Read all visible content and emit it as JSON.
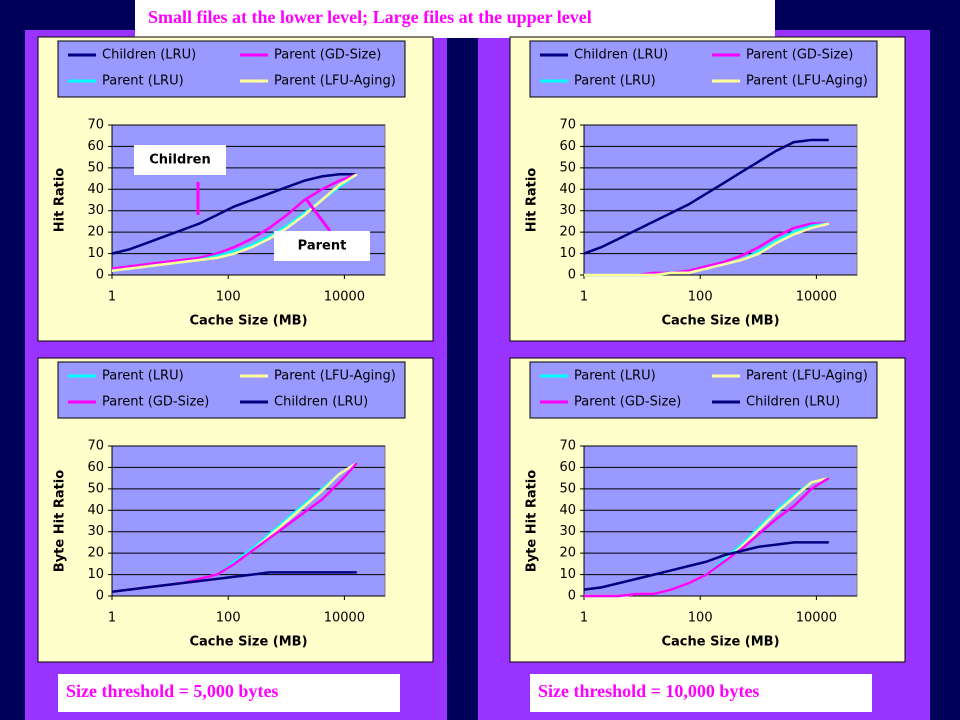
{
  "slide": {
    "title": "Small files at the lower level; Large files at the upper  level",
    "captions": [
      "Size threshold = 5,000 bytes",
      "Size threshold = 10,000 bytes"
    ]
  },
  "chart_data": [
    {
      "type": "line",
      "y_label": "Hit Ratio",
      "x_label": "Cache Size (MB)",
      "log_x": true,
      "grid": true,
      "x": [
        1,
        2,
        4,
        8,
        16,
        32,
        64,
        128,
        256,
        512,
        1024,
        2048,
        4096,
        8192,
        16384
      ],
      "xlim": [
        1,
        50000
      ],
      "xticks": [
        1,
        100,
        10000
      ],
      "ylim": [
        0,
        70
      ],
      "yticks": [
        0,
        10,
        20,
        30,
        40,
        50,
        60,
        70
      ],
      "annotations": [
        "Children",
        "Parent"
      ],
      "series": [
        {
          "name": "Children (LRU)",
          "color": "#000080",
          "values": [
            10,
            12,
            15,
            18,
            21,
            24,
            28,
            32,
            35,
            38,
            41,
            44,
            46,
            47,
            47
          ]
        },
        {
          "name": "Parent (GD-Size)",
          "color": "#ff00ff",
          "values": [
            3,
            4,
            5,
            6,
            7,
            8,
            10,
            13,
            17,
            22,
            28,
            35,
            40,
            44,
            47
          ]
        },
        {
          "name": "Parent (LRU)",
          "color": "#00ffff",
          "values": [
            2,
            3,
            4,
            5,
            6,
            7,
            9,
            11,
            14,
            18,
            23,
            29,
            35,
            41,
            47
          ]
        },
        {
          "name": "Parent (LFU-Aging)",
          "color": "#ffff99",
          "values": [
            2,
            3,
            4,
            5,
            6,
            7,
            8,
            10,
            13,
            17,
            22,
            28,
            35,
            42,
            47
          ]
        }
      ]
    },
    {
      "type": "line",
      "y_label": "Hit Ratio",
      "x_label": "Cache Size (MB)",
      "log_x": true,
      "grid": true,
      "x": [
        1,
        2,
        4,
        8,
        16,
        32,
        64,
        128,
        256,
        512,
        1024,
        2048,
        4096,
        8192,
        16384
      ],
      "xlim": [
        1,
        50000
      ],
      "xticks": [
        1,
        100,
        10000
      ],
      "ylim": [
        0,
        70
      ],
      "yticks": [
        0,
        10,
        20,
        30,
        40,
        50,
        60,
        70
      ],
      "series": [
        {
          "name": "Children (LRU)",
          "color": "#000080",
          "values": [
            10,
            13,
            17,
            21,
            25,
            29,
            33,
            38,
            43,
            48,
            53,
            58,
            62,
            63,
            63
          ]
        },
        {
          "name": "Parent (GD-Size)",
          "color": "#ff00ff",
          "values": [
            0,
            0,
            0,
            0,
            1,
            1,
            2,
            4,
            6,
            9,
            13,
            18,
            22,
            24,
            24
          ]
        },
        {
          "name": "Parent (LRU)",
          "color": "#00ffff",
          "values": [
            0,
            0,
            0,
            0,
            0,
            1,
            1,
            3,
            5,
            7,
            11,
            16,
            20,
            23,
            24
          ]
        },
        {
          "name": "Parent (LFU-Aging)",
          "color": "#ffff99",
          "values": [
            0,
            0,
            0,
            0,
            0,
            1,
            1,
            3,
            5,
            7,
            10,
            15,
            19,
            22,
            24
          ]
        }
      ]
    },
    {
      "type": "line",
      "y_label": "Byte Hit Ratio",
      "x_label": "Cache Size (MB)",
      "log_x": true,
      "grid": true,
      "x": [
        1,
        2,
        4,
        8,
        16,
        32,
        64,
        128,
        256,
        512,
        1024,
        2048,
        4096,
        8192,
        16384
      ],
      "xlim": [
        1,
        50000
      ],
      "xticks": [
        1,
        100,
        10000
      ],
      "ylim": [
        0,
        70
      ],
      "yticks": [
        0,
        10,
        20,
        30,
        40,
        50,
        60,
        70
      ],
      "series": [
        {
          "name": "Parent (LRU)",
          "color": "#00ffff",
          "values": [
            2,
            3,
            4,
            5,
            6,
            8,
            10,
            16,
            22,
            29,
            36,
            43,
            50,
            57,
            62
          ]
        },
        {
          "name": "Parent (LFU-Aging)",
          "color": "#ffff99",
          "values": [
            2,
            3,
            4,
            5,
            6,
            8,
            10,
            15,
            21,
            28,
            35,
            42,
            49,
            57,
            62
          ]
        },
        {
          "name": "Parent (GD-Size)",
          "color": "#ff00ff",
          "values": [
            2,
            3,
            4,
            5,
            6,
            8,
            10,
            15,
            21,
            27,
            33,
            39,
            45,
            53,
            62
          ]
        },
        {
          "name": "Children (LRU)",
          "color": "#000080",
          "values": [
            2,
            3,
            4,
            5,
            6,
            7,
            8,
            9,
            10,
            11,
            11,
            11,
            11,
            11,
            11
          ]
        }
      ]
    },
    {
      "type": "line",
      "y_label": "Byte Hit Ratio",
      "x_label": "Cache Size (MB)",
      "log_x": true,
      "grid": true,
      "x": [
        1,
        2,
        4,
        8,
        16,
        32,
        64,
        128,
        256,
        512,
        1024,
        2048,
        4096,
        8192,
        16384
      ],
      "xlim": [
        1,
        50000
      ],
      "xticks": [
        1,
        100,
        10000
      ],
      "ylim": [
        0,
        70
      ],
      "yticks": [
        0,
        10,
        20,
        30,
        40,
        50,
        60,
        70
      ],
      "series": [
        {
          "name": "Parent (LRU)",
          "color": "#00ffff",
          "values": [
            0,
            0,
            0,
            1,
            1,
            3,
            6,
            10,
            17,
            24,
            32,
            40,
            47,
            53,
            55
          ]
        },
        {
          "name": "Parent (LFU-Aging)",
          "color": "#ffff99",
          "values": [
            0,
            0,
            0,
            1,
            1,
            3,
            6,
            10,
            16,
            23,
            31,
            39,
            46,
            53,
            55
          ]
        },
        {
          "name": "Parent (GD-Size)",
          "color": "#ff00ff",
          "values": [
            0,
            0,
            0,
            1,
            1,
            3,
            6,
            10,
            16,
            22,
            29,
            36,
            42,
            50,
            55
          ]
        },
        {
          "name": "Children (LRU)",
          "color": "#000080",
          "values": [
            3,
            4,
            6,
            8,
            10,
            12,
            14,
            16,
            19,
            21,
            23,
            24,
            25,
            25,
            25
          ]
        }
      ]
    }
  ]
}
